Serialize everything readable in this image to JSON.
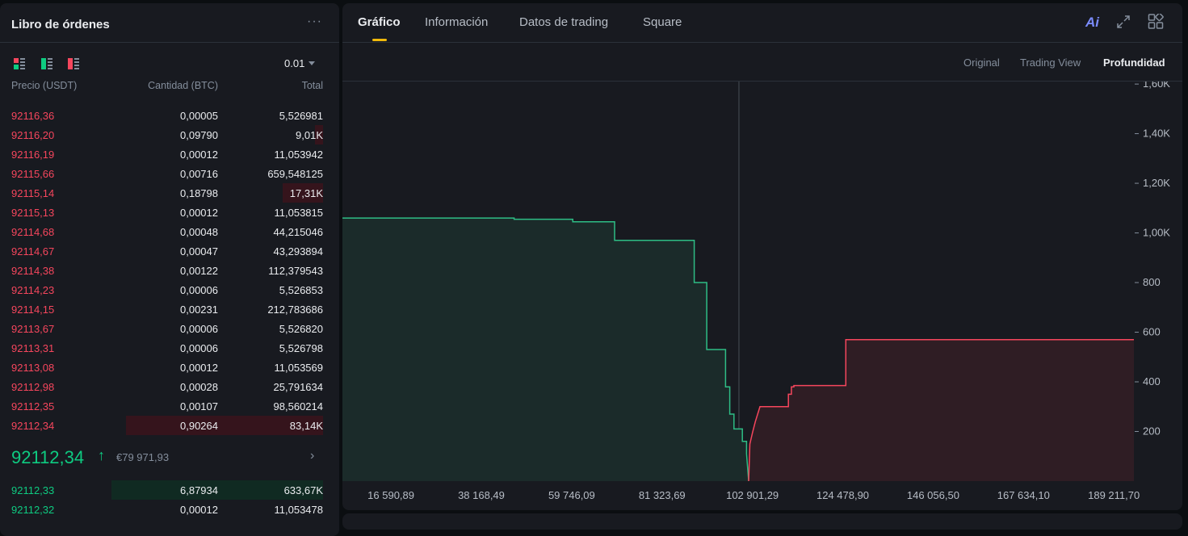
{
  "orderbook": {
    "title": "Libro de órdenes",
    "more_icon": "more-dots-icon",
    "precision": "0.01",
    "columns": {
      "price": "Precio (USDT)",
      "qty": "Cantidad (BTC)",
      "total": "Total"
    },
    "asks": [
      {
        "price": "92116,36",
        "qty": "0,00005",
        "total": "5,526981",
        "depth": 0
      },
      {
        "price": "92116,20",
        "qty": "0,09790",
        "total": "9,01K",
        "depth": 0.04
      },
      {
        "price": "92116,19",
        "qty": "0,00012",
        "total": "11,053942",
        "depth": 0
      },
      {
        "price": "92115,66",
        "qty": "0,00716",
        "total": "659,548125",
        "depth": 0
      },
      {
        "price": "92115,14",
        "qty": "0,18798",
        "total": "17,31K",
        "depth": 0.19
      },
      {
        "price": "92115,13",
        "qty": "0,00012",
        "total": "11,053815",
        "depth": 0
      },
      {
        "price": "92114,68",
        "qty": "0,00048",
        "total": "44,215046",
        "depth": 0
      },
      {
        "price": "92114,67",
        "qty": "0,00047",
        "total": "43,293894",
        "depth": 0
      },
      {
        "price": "92114,38",
        "qty": "0,00122",
        "total": "112,379543",
        "depth": 0
      },
      {
        "price": "92114,23",
        "qty": "0,00006",
        "total": "5,526853",
        "depth": 0
      },
      {
        "price": "92114,15",
        "qty": "0,00231",
        "total": "212,783686",
        "depth": 0
      },
      {
        "price": "92113,67",
        "qty": "0,00006",
        "total": "5,526820",
        "depth": 0
      },
      {
        "price": "92113,31",
        "qty": "0,00006",
        "total": "5,526798",
        "depth": 0
      },
      {
        "price": "92113,08",
        "qty": "0,00012",
        "total": "11,053569",
        "depth": 0
      },
      {
        "price": "92112,98",
        "qty": "0,00028",
        "total": "25,791634",
        "depth": 0
      },
      {
        "price": "92112,35",
        "qty": "0,00107",
        "total": "98,560214",
        "depth": 0
      },
      {
        "price": "92112,34",
        "qty": "0,90264",
        "total": "83,14K",
        "depth": 0.93
      }
    ],
    "last_price": "92112,34",
    "last_arrow": "↑",
    "fiat": "€79 971,93",
    "bids": [
      {
        "price": "92112,33",
        "qty": "6,87934",
        "total": "633,67K",
        "depth": 1.0
      },
      {
        "price": "92112,32",
        "qty": "0,00012",
        "total": "11,053478",
        "depth": 0
      }
    ]
  },
  "tabs": [
    {
      "label": "Gráfico",
      "active": true
    },
    {
      "label": "Información",
      "active": false
    },
    {
      "label": "Datos de trading",
      "active": false
    },
    {
      "label": "Square",
      "active": false
    }
  ],
  "ai_label": "Ai",
  "views": [
    {
      "label": "Original",
      "active": false
    },
    {
      "label": "Trading View",
      "active": false
    },
    {
      "label": "Profundidad",
      "active": true
    }
  ],
  "colors": {
    "bid": "#0ecb81",
    "ask": "#f6465d",
    "bid_line": "#2ebd85",
    "ask_line": "#f6465d"
  },
  "chart_data": {
    "type": "area",
    "x_tick_labels": [
      "16 590,89",
      "38 168,49",
      "59 746,09",
      "81 323,69",
      "102 901,29",
      "124 478,90",
      "146 056,50",
      "167 634,10",
      "189 211,70"
    ],
    "x_ticks": [
      16590.89,
      38168.49,
      59746.09,
      81323.69,
      102901.29,
      124478.9,
      146056.5,
      167634.1,
      189211.7
    ],
    "xlim": [
      5000,
      194000
    ],
    "y_tick_labels": [
      "200",
      "400",
      "600",
      "800",
      "1,00K",
      "1,20K",
      "1,40K",
      "1,60K"
    ],
    "y_ticks": [
      200,
      400,
      600,
      800,
      1000,
      1200,
      1400,
      1600
    ],
    "ylim": [
      0,
      1610
    ],
    "mid_price": 92112.34,
    "series": [
      {
        "side": "bid",
        "x": [
          5000,
          46000,
          46000,
          60000,
          60000,
          70000,
          70000,
          89000,
          89000,
          92000,
          92000,
          96500,
          96500,
          97500,
          97500,
          98500,
          98500,
          100500,
          100500,
          101500,
          101500,
          102000
        ],
        "y": [
          1060,
          1060,
          1055,
          1055,
          1045,
          1045,
          970,
          970,
          800,
          800,
          530,
          530,
          380,
          380,
          270,
          270,
          210,
          210,
          160,
          160,
          110,
          0
        ]
      },
      {
        "side": "ask",
        "x": [
          102000,
          102300,
          102300,
          103000,
          103000,
          103600,
          103600,
          104700,
          104700,
          111500,
          111500,
          112200,
          112200,
          112800,
          112800,
          125200,
          125200,
          194000
        ],
        "y": [
          0,
          150,
          150,
          200,
          200,
          240,
          240,
          300,
          300,
          300,
          350,
          350,
          380,
          380,
          385,
          385,
          570,
          570
        ]
      }
    ]
  }
}
